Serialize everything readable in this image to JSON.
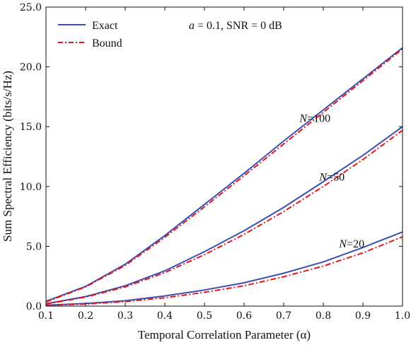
{
  "chart_data": {
    "type": "line",
    "xlabel": "Temporal Correlation Parameter (α)",
    "ylabel": "Sum Spectral Efficiency (bits/s/Hz)",
    "xlim": [
      0.1,
      1.0
    ],
    "ylim": [
      0.0,
      25.0
    ],
    "xticks": [
      0.1,
      0.2,
      0.3,
      0.4,
      0.5,
      0.6,
      0.7,
      0.8,
      0.9,
      1.0
    ],
    "yticks": [
      0.0,
      5.0,
      10.0,
      15.0,
      20.0,
      25.0
    ],
    "xtick_labels": [
      "0.1",
      "0.2",
      "0.3",
      "0.4",
      "0.5",
      "0.6",
      "0.7",
      "0.8",
      "0.9",
      "1.0"
    ],
    "ytick_labels": [
      "0.0",
      "5.0",
      "10.0",
      "15.0",
      "20.0",
      "25.0"
    ],
    "grid": false,
    "legend": {
      "position": "top-left",
      "entries": [
        {
          "label": "Exact",
          "color": "#3a4fb0",
          "style": "solid"
        },
        {
          "label": "Bound",
          "color": "#e8141e",
          "style": "dashdot"
        }
      ]
    },
    "annotation": {
      "var": "a",
      "rest": " = 0.1, SNR = 0 dB"
    },
    "curve_labels": [
      {
        "var": "N",
        "rest": "=100",
        "x": 0.74,
        "y": 15.4
      },
      {
        "var": "N",
        "rest": "=50",
        "x": 0.79,
        "y": 10.5
      },
      {
        "var": "N",
        "rest": "=20",
        "x": 0.84,
        "y": 4.9
      }
    ],
    "x": [
      0.1,
      0.2,
      0.3,
      0.4,
      0.5,
      0.6,
      0.7,
      0.8,
      0.9,
      1.0
    ],
    "series": [
      {
        "group": "N=100",
        "kind": "Exact",
        "values": [
          0.4,
          1.65,
          3.5,
          5.9,
          8.5,
          11.1,
          13.8,
          16.4,
          19.0,
          21.6
        ]
      },
      {
        "group": "N=100",
        "kind": "Bound",
        "values": [
          0.35,
          1.6,
          3.4,
          5.75,
          8.3,
          10.9,
          13.55,
          16.2,
          18.85,
          21.5
        ]
      },
      {
        "group": "N=50",
        "kind": "Exact",
        "values": [
          0.2,
          0.8,
          1.7,
          2.95,
          4.55,
          6.3,
          8.25,
          10.4,
          12.6,
          15.0
        ]
      },
      {
        "group": "N=50",
        "kind": "Bound",
        "values": [
          0.18,
          0.75,
          1.6,
          2.8,
          4.3,
          6.0,
          7.9,
          10.0,
          12.25,
          14.7
        ]
      },
      {
        "group": "N=20",
        "kind": "Exact",
        "values": [
          0.07,
          0.22,
          0.45,
          0.85,
          1.35,
          1.95,
          2.75,
          3.7,
          4.9,
          6.2
        ]
      },
      {
        "group": "N=20",
        "kind": "Bound",
        "values": [
          0.06,
          0.17,
          0.38,
          0.7,
          1.15,
          1.7,
          2.45,
          3.35,
          4.45,
          5.8
        ]
      }
    ]
  }
}
